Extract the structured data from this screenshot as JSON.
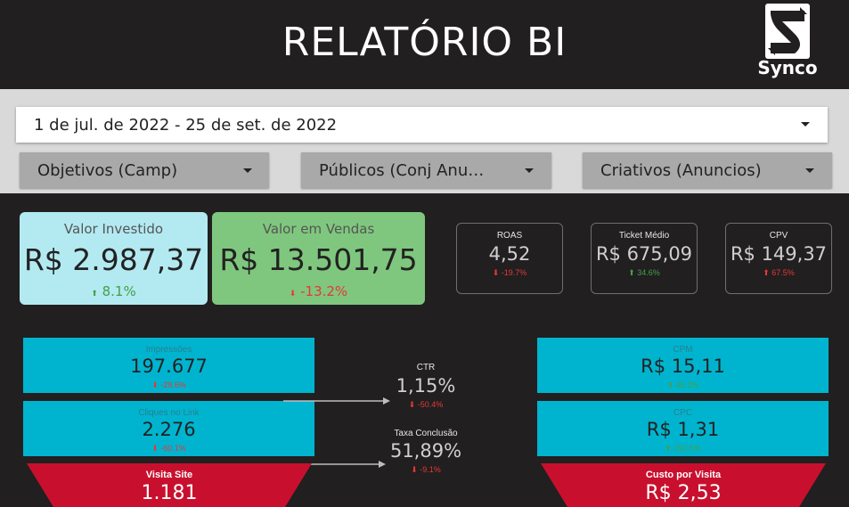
{
  "header": {
    "title": "RELATÓRIO BI",
    "logo_text": "Synco",
    "logo_icon": "synco-s-logo-icon"
  },
  "filters": {
    "date_range": "1 de jul. de 2022 - 25 de set. de 2022",
    "objetivos": "Objetivos (Camp)",
    "publicos": "Públicos (Conj Anu…",
    "criativos": "Criativos (Anuncios)"
  },
  "kpi_big": [
    {
      "label": "Valor Investido",
      "value": "R$ 2.987,37",
      "delta": "8.1%",
      "direction": "up"
    },
    {
      "label": "Valor em Vendas",
      "value": "R$ 13.501,75",
      "delta": "-13.2%",
      "direction": "down"
    }
  ],
  "kpi_small": [
    {
      "label": "ROAS",
      "value": "4,52",
      "delta": "-19.7%",
      "direction": "down"
    },
    {
      "label": "Ticket Médio",
      "value": "R$ 675,09",
      "delta": "34.6%",
      "direction": "up"
    },
    {
      "label": "CPV",
      "value": "R$ 149,37",
      "delta": "67.5%",
      "direction": "up"
    }
  ],
  "funnel_left": [
    {
      "label": "Impressões",
      "value": "197.677",
      "delta": "-29.6%",
      "direction": "down"
    },
    {
      "label": "Cliques no Link",
      "value": "2.276",
      "delta": "-60.1%",
      "direction": "down"
    }
  ],
  "funnel_left_bottom": {
    "label": "Visita Site",
    "value": "1.181"
  },
  "funnel_mid": [
    {
      "label": "CTR",
      "value": "1,15%",
      "delta": "-50.4%",
      "direction": "down"
    },
    {
      "label": "Taxa Conclusão",
      "value": "51,89%",
      "delta": "-9.1%",
      "direction": "down"
    }
  ],
  "funnel_right": [
    {
      "label": "CPM",
      "value": "R$ 15,11",
      "delta": "45.2%",
      "direction": "up"
    },
    {
      "label": "CPC",
      "value": "R$ 1,31",
      "delta": "192.5%",
      "direction": "up"
    }
  ],
  "funnel_right_bottom": {
    "label": "Custo por Visita",
    "value": "R$ 2,53"
  },
  "colors": {
    "background": "#211f20",
    "filter_band": "#d9d9d9",
    "card_investido": "#b3eaf2",
    "card_vendas": "#7fc77e",
    "tile_cyan": "#00b4cf",
    "funnel_red": "#c8102e",
    "delta_up": "#43a047",
    "delta_down": "#e53935"
  }
}
